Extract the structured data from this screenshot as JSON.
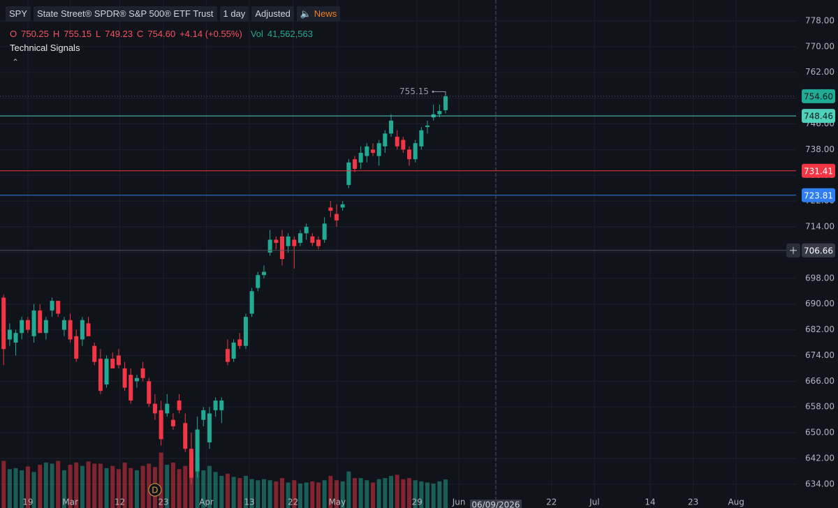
{
  "legend_bar": {
    "symbol": "SPY",
    "name": "State Street® SPDR® S&P 500® ETF Trust",
    "interval": "1 day",
    "adjustment": "Adjusted",
    "news": "News",
    "ohlc": [
      {
        "key": "O",
        "value": "750.25"
      },
      {
        "key": "H",
        "value": "755.15"
      },
      {
        "key": "L",
        "value": "749.23"
      },
      {
        "key": "C",
        "value": "754.60"
      }
    ],
    "change": "+4.14 (+0.55%)",
    "vol_key": "Vol",
    "volume": "41,562,563"
  },
  "technical_signals": "Technical Signals",
  "chart_data": {
    "type": "candlestick",
    "up_color": "#22ab94",
    "down_color": "#f23645",
    "open": [
      692,
      679,
      678,
      681,
      685,
      680,
      688,
      681,
      688,
      691,
      682,
      685,
      680,
      679,
      684,
      677,
      673,
      665,
      673,
      674,
      670,
      668,
      666,
      670,
      666,
      659,
      657,
      656,
      654,
      660,
      653,
      645,
      638,
      654,
      647,
      657,
      657,
      676,
      673,
      679,
      677,
      687,
      695,
      699,
      706,
      710,
      711,
      708,
      710,
      709,
      712,
      711,
      710,
      710,
      720,
      718,
      720,
      727,
      735,
      734,
      736,
      738,
      736,
      739,
      743,
      742,
      741,
      738,
      735,
      739,
      745,
      748,
      749,
      750.25
    ],
    "high": [
      693,
      684,
      682,
      686,
      686,
      690,
      690,
      686,
      692,
      691,
      686,
      687,
      682,
      686,
      686,
      678,
      676,
      674,
      675,
      676,
      672,
      670,
      668,
      672,
      667,
      662,
      660,
      662,
      656,
      662,
      656,
      650,
      655,
      658,
      658,
      661,
      661,
      679,
      679,
      681,
      687,
      695,
      700,
      702,
      713,
      711,
      713,
      712,
      711,
      713,
      715,
      712,
      711,
      717,
      722,
      721,
      722,
      735,
      736,
      739,
      740,
      740,
      741,
      744,
      749,
      744,
      742,
      739,
      741,
      745,
      747,
      752,
      752,
      755.15
    ],
    "low": [
      671,
      677,
      674,
      679,
      681,
      678,
      681,
      679,
      686,
      686,
      680,
      678,
      672,
      677,
      680,
      671,
      662,
      664,
      670,
      670,
      663,
      659,
      664,
      666,
      658,
      654,
      646,
      655,
      651,
      656,
      644,
      634,
      636,
      652,
      645,
      655,
      653,
      671,
      672,
      676,
      676,
      686,
      694,
      698,
      705,
      707,
      702,
      706,
      701,
      708,
      710,
      708,
      707,
      709,
      717,
      714,
      719,
      726,
      731,
      732,
      734,
      736,
      733,
      737,
      742,
      738,
      737,
      733,
      734,
      738,
      743,
      747,
      748,
      749.23
    ],
    "close": [
      676,
      682,
      681,
      685,
      682,
      688,
      681,
      685,
      691,
      687,
      685,
      679,
      673,
      685,
      680,
      672,
      663,
      673,
      670,
      671,
      664,
      660,
      667,
      667,
      659,
      656,
      648,
      659,
      652,
      657,
      645,
      636,
      651,
      657,
      656,
      660,
      660,
      672,
      678,
      677,
      686,
      694,
      699,
      700,
      710,
      709,
      704,
      711,
      708,
      712,
      714,
      709,
      708,
      715,
      719,
      716,
      721,
      734,
      732,
      737,
      739,
      737,
      740,
      743,
      747,
      739,
      738,
      735,
      740,
      744,
      745.5,
      749,
      750,
      754.6
    ],
    "volume": [
      75000000,
      60000000,
      62000000,
      58000000,
      65000000,
      55000000,
      68000000,
      72000000,
      70000000,
      75000000,
      58000000,
      68000000,
      72000000,
      66000000,
      74000000,
      70000000,
      70000000,
      62000000,
      66000000,
      60000000,
      72000000,
      62000000,
      58000000,
      66000000,
      70000000,
      64000000,
      90000000,
      68000000,
      72000000,
      60000000,
      66000000,
      80000000,
      70000000,
      58000000,
      66000000,
      55000000,
      48000000,
      52000000,
      46000000,
      44000000,
      48000000,
      42000000,
      40000000,
      42000000,
      40000000,
      38000000,
      44000000,
      36000000,
      40000000,
      34000000,
      36000000,
      38000000,
      36000000,
      40000000,
      48000000,
      40000000,
      38000000,
      56000000,
      44000000,
      44000000,
      40000000,
      36000000,
      42000000,
      44000000,
      48000000,
      50000000,
      42000000,
      44000000,
      40000000,
      38000000,
      36000000,
      34000000,
      38000000,
      41562563
    ],
    "volume_lim": [
      0,
      150000000
    ],
    "xlim": [
      -0.6,
      130.9
    ],
    "xticks": [
      {
        "value": 4,
        "label": "19"
      },
      {
        "value": 11,
        "label": "Mar"
      },
      {
        "value": 19.2,
        "label": "12"
      },
      {
        "value": 26.4,
        "label": "23"
      },
      {
        "value": 33.5,
        "label": "Apr"
      },
      {
        "value": 40.6,
        "label": "13"
      },
      {
        "value": 47.8,
        "label": "22"
      },
      {
        "value": 55.1,
        "label": "May"
      },
      {
        "value": 68.3,
        "label": "29"
      },
      {
        "value": 75.2,
        "label": "Jun"
      },
      {
        "value": 90.5,
        "label": "22"
      },
      {
        "value": 97.6,
        "label": "Jul"
      },
      {
        "value": 106.8,
        "label": "14"
      },
      {
        "value": 113.9,
        "label": "23"
      },
      {
        "value": 121,
        "label": "Aug"
      }
    ],
    "ylim": [
      626.6,
      784.5
    ],
    "yticks": [
      {
        "value": 634,
        "label": "634.00"
      },
      {
        "value": 642,
        "label": "642.00"
      },
      {
        "value": 650,
        "label": "650.00"
      },
      {
        "value": 658,
        "label": "658.00"
      },
      {
        "value": 666,
        "label": "666.00"
      },
      {
        "value": 674,
        "label": "674.00"
      },
      {
        "value": 682,
        "label": "682.00"
      },
      {
        "value": 690,
        "label": "690.00"
      },
      {
        "value": 698,
        "label": "698.00"
      },
      {
        "value": 706,
        "label": "706.00"
      },
      {
        "value": 714,
        "label": "714.00"
      },
      {
        "value": 722,
        "label": "722.00"
      },
      {
        "value": 730,
        "label": "730.00"
      },
      {
        "value": 738,
        "label": "738.00"
      },
      {
        "value": 746,
        "label": "746.00"
      },
      {
        "value": 754,
        "label": "754.00"
      },
      {
        "value": 762,
        "label": "762.00"
      },
      {
        "value": 770,
        "label": "770.00"
      },
      {
        "value": 778,
        "label": "778.00"
      }
    ],
    "grid": true,
    "last_price": {
      "value": 754.6,
      "label": "754.60",
      "color": "#22ab94"
    },
    "price_lines": [
      {
        "value": 748.46,
        "color": "#4fd1bb"
      },
      {
        "value": 731.41,
        "color": "#f23645"
      },
      {
        "value": 723.81,
        "color": "#2f7ff0"
      }
    ],
    "crosshair": {
      "x": 81.3,
      "x_label": "06/09/2026",
      "y": 706.66
    },
    "markers": [
      {
        "x": 25,
        "label": "D"
      }
    ]
  }
}
